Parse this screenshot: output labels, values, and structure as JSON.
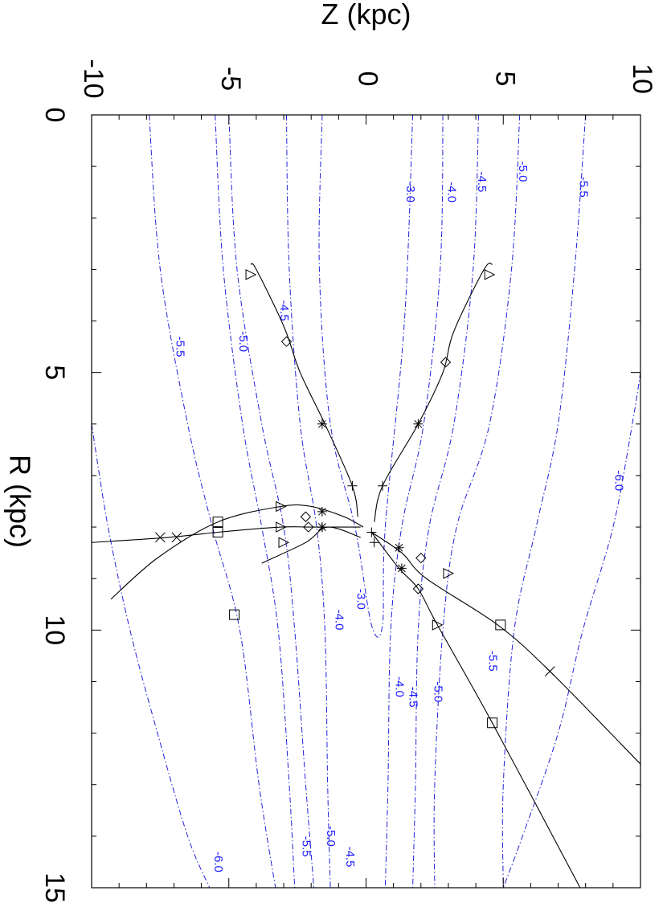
{
  "chart_data": {
    "type": "line",
    "orientation": "rotated 90 degrees clockwise",
    "xlabel": "R (kpc)",
    "ylabel": "Z (kpc)",
    "xlim": [
      0,
      15
    ],
    "ylim": [
      -10,
      10
    ],
    "x_ticks": [
      "0",
      "5",
      "10",
      "15"
    ],
    "y_ticks": [
      "-10",
      "-5",
      "0",
      "5",
      "10"
    ],
    "contour_color": "#2020d8",
    "track_color": "#000000",
    "contours": [
      {
        "label": "-3.0",
        "points": [
          [
            0,
            -1.6
          ],
          [
            3,
            -1.7
          ],
          [
            6,
            -1.3
          ],
          [
            8,
            -0.4
          ],
          [
            9.9,
            0.2
          ],
          [
            9.9,
            0.6
          ],
          [
            8,
            0.7
          ],
          [
            4,
            1.4
          ],
          [
            0,
            1.7
          ]
        ]
      },
      {
        "label": "-4.0",
        "points": [
          [
            0,
            2.8
          ],
          [
            3,
            2.7
          ],
          [
            6,
            2.1
          ],
          [
            8,
            1.3
          ],
          [
            10,
            0.9
          ],
          [
            13,
            0.8
          ],
          [
            15,
            0.7
          ]
        ]
      },
      {
        "label": "-4.0",
        "points": [
          [
            0,
            -2.9
          ],
          [
            3,
            -2.8
          ],
          [
            6,
            -2.4
          ],
          [
            8,
            -1.8
          ],
          [
            10,
            -1.5
          ],
          [
            13,
            -1.4
          ],
          [
            15,
            -1.3
          ]
        ]
      },
      {
        "label": "-4.5",
        "points": [
          [
            0,
            4.1
          ],
          [
            3,
            3.9
          ],
          [
            6,
            3.2
          ],
          [
            8,
            2.3
          ],
          [
            10,
            1.9
          ],
          [
            13,
            1.8
          ],
          [
            15,
            1.7
          ]
        ]
      },
      {
        "label": "-4.5",
        "points": [
          [
            0,
            -5.0
          ],
          [
            3,
            -4.7
          ],
          [
            6,
            -3.8
          ],
          [
            8,
            -3.0
          ],
          [
            10,
            -2.6
          ],
          [
            13,
            -2.2
          ],
          [
            15,
            -1.9
          ]
        ]
      },
      {
        "label": "-5.0",
        "points": [
          [
            0,
            5.6
          ],
          [
            3,
            5.3
          ],
          [
            6,
            4.5
          ],
          [
            8,
            3.3
          ],
          [
            10,
            2.8
          ],
          [
            13,
            2.5
          ],
          [
            15,
            2.5
          ]
        ]
      },
      {
        "label": "-5.0",
        "points": [
          [
            0,
            -5.5
          ],
          [
            3,
            -5.2
          ],
          [
            6,
            -4.5
          ],
          [
            8,
            -3.8
          ],
          [
            10,
            -3.2
          ],
          [
            13,
            -2.8
          ],
          [
            15,
            -2.6
          ]
        ]
      },
      {
        "label": "-5.5",
        "points": [
          [
            0,
            8.0
          ],
          [
            3,
            7.6
          ],
          [
            6,
            7.0
          ],
          [
            8,
            6.2
          ],
          [
            10,
            5.4
          ],
          [
            13,
            5.0
          ],
          [
            15,
            5.0
          ]
        ]
      },
      {
        "label": "-5.5",
        "points": [
          [
            0,
            -7.9
          ],
          [
            3,
            -7.5
          ],
          [
            6,
            -6.5
          ],
          [
            8,
            -5.6
          ],
          [
            10,
            -4.6
          ],
          [
            13,
            -3.9
          ],
          [
            15,
            -3.3
          ]
        ]
      },
      {
        "label": "-6.0",
        "points": [
          [
            5,
            10.0
          ],
          [
            6,
            9.7
          ],
          [
            8,
            9.0
          ],
          [
            10,
            7.9
          ],
          [
            12,
            7.0
          ],
          [
            14,
            5.7
          ],
          [
            15,
            5.0
          ]
        ]
      },
      {
        "label": "-6.0",
        "points": [
          [
            6,
            -10.0
          ],
          [
            8,
            -9.4
          ],
          [
            10,
            -8.6
          ],
          [
            12,
            -7.6
          ],
          [
            14,
            -6.5
          ],
          [
            15,
            -5.7
          ]
        ]
      }
    ],
    "contour_label_positions": [
      {
        "text": "-3.0",
        "x": 1.5,
        "y": 1.6
      },
      {
        "text": "-4.0",
        "x": 1.5,
        "y": 3.1
      },
      {
        "text": "-4.5",
        "x": 1.3,
        "y": 4.2
      },
      {
        "text": "-5.0",
        "x": 1.1,
        "y": 5.7
      },
      {
        "text": "-5.5",
        "x": 1.4,
        "y": 7.9
      },
      {
        "text": "-6.0",
        "x": 7.1,
        "y": 9.2
      },
      {
        "text": "-4.5",
        "x": 3.8,
        "y": -3.0
      },
      {
        "text": "-5.0",
        "x": 4.4,
        "y": -4.5
      },
      {
        "text": "-5.5",
        "x": 4.5,
        "y": -6.8
      },
      {
        "text": "-3.0",
        "x": 9.4,
        "y": -0.2
      },
      {
        "text": "-4.0",
        "x": 9.8,
        "y": -1.0
      },
      {
        "text": "-4.0",
        "x": 11.1,
        "y": 1.2
      },
      {
        "text": "-4.5",
        "x": 11.3,
        "y": 1.7
      },
      {
        "text": "-5.0",
        "x": 11.2,
        "y": 2.6
      },
      {
        "text": "-5.5",
        "x": 10.6,
        "y": 4.6
      },
      {
        "text": "-4.5",
        "x": 14.4,
        "y": -0.6
      },
      {
        "text": "-5.0",
        "x": 14.0,
        "y": -1.3
      },
      {
        "text": "-5.5",
        "x": 14.2,
        "y": -2.2
      },
      {
        "text": "-6.0",
        "x": 14.5,
        "y": -5.4
      }
    ],
    "series": [
      {
        "points": [
          [
            7.8,
            -0.3
          ],
          [
            7.2,
            -0.5
          ],
          [
            6.0,
            -1.5
          ],
          [
            5.0,
            -2.4
          ],
          [
            4.1,
            -3.0
          ],
          [
            3.0,
            -4.0
          ],
          [
            2.9,
            -4.2
          ]
        ],
        "markers": [
          [
            "plus",
            7.2,
            -0.5
          ],
          [
            "asterisk",
            6.0,
            -1.6
          ],
          [
            "diamond",
            4.4,
            -2.9
          ],
          [
            "triangle",
            3.1,
            -4.2
          ]
        ]
      },
      {
        "points": [
          [
            7.9,
            0.3
          ],
          [
            7.2,
            0.6
          ],
          [
            6.0,
            1.9
          ],
          [
            5.0,
            2.8
          ],
          [
            4.2,
            3.2
          ],
          [
            3.0,
            4.3
          ],
          [
            2.9,
            4.6
          ]
        ],
        "markers": [
          [
            "plus",
            7.2,
            0.6
          ],
          [
            "asterisk",
            6.0,
            1.9
          ],
          [
            "diamond",
            4.8,
            2.9
          ],
          [
            "triangle",
            3.1,
            4.5
          ]
        ]
      },
      {
        "points": [
          [
            8.1,
            0.2
          ],
          [
            8.5,
            1.3
          ],
          [
            9.0,
            2.2
          ],
          [
            9.9,
            4.8
          ],
          [
            10.8,
            6.7
          ],
          [
            12.6,
            10.0
          ]
        ],
        "markers": [
          [
            "plus",
            8.1,
            0.2
          ],
          [
            "asterisk",
            8.4,
            1.2
          ],
          [
            "diamond",
            8.6,
            2.0
          ],
          [
            "triangle",
            8.9,
            3.0
          ],
          [
            "square",
            9.9,
            4.9
          ],
          [
            "x",
            10.8,
            6.7
          ]
        ]
      },
      {
        "points": [
          [
            8.1,
            0.2
          ],
          [
            8.8,
            1.2
          ],
          [
            9.2,
            1.9
          ],
          [
            9.9,
            2.6
          ],
          [
            11.8,
            4.6
          ],
          [
            15.0,
            7.8
          ]
        ],
        "markers": [
          [
            "plus",
            8.3,
            0.3
          ],
          [
            "asterisk",
            8.8,
            1.3
          ],
          [
            "diamond",
            9.2,
            1.9
          ],
          [
            "triangle",
            9.9,
            2.6
          ],
          [
            "square",
            11.8,
            4.6
          ]
        ]
      },
      {
        "points": [
          [
            8.0,
            -0.1
          ],
          [
            7.8,
            -0.8
          ],
          [
            7.6,
            -2.0
          ],
          [
            7.6,
            -3.1
          ],
          [
            7.9,
            -5.4
          ],
          [
            8.6,
            -7.6
          ],
          [
            9.4,
            -9.3
          ]
        ],
        "markers": [
          [
            "asterisk",
            7.7,
            -1.6
          ],
          [
            "diamond",
            7.8,
            -2.2
          ],
          [
            "triangle",
            7.6,
            -3.1
          ],
          [
            "square",
            7.9,
            -5.4
          ]
        ]
      },
      {
        "points": [
          [
            8.0,
            -0.2
          ],
          [
            8.0,
            -1.4
          ],
          [
            8.0,
            -2.1
          ],
          [
            8.0,
            -3.1
          ],
          [
            8.1,
            -5.4
          ],
          [
            8.2,
            -7.2
          ],
          [
            8.3,
            -10.0
          ]
        ],
        "markers": [
          [
            "asterisk",
            8.0,
            -1.6
          ],
          [
            "diamond",
            8.0,
            -2.1
          ],
          [
            "triangle",
            8.0,
            -3.1
          ],
          [
            "square",
            8.1,
            -5.4
          ],
          [
            "x",
            8.2,
            -6.9
          ],
          [
            "x",
            8.2,
            -7.5
          ]
        ]
      },
      {
        "points": [
          [
            8.2,
            -0.2
          ],
          [
            8.0,
            -1.4
          ],
          [
            8.3,
            -2.2
          ],
          [
            8.7,
            -3.8
          ]
        ],
        "markers": [
          [
            "asterisk",
            8.0,
            -1.6
          ],
          [
            "triangle",
            8.3,
            -3.0
          ]
        ]
      }
    ],
    "isolated_markers": [
      [
        "square",
        9.7,
        -4.8
      ]
    ]
  }
}
